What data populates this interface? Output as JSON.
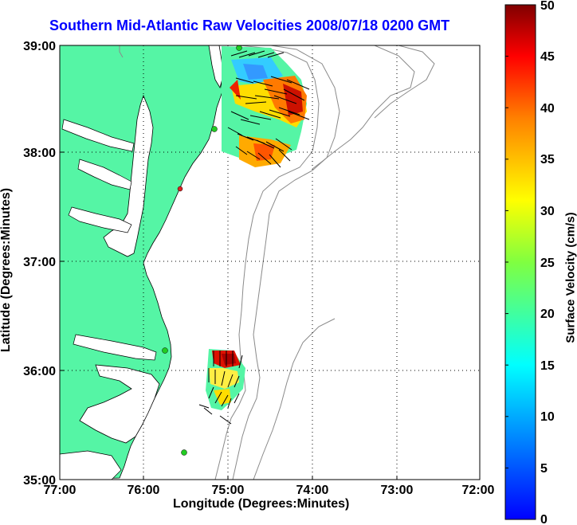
{
  "map": {
    "title": "Southern Mid-Atlantic Raw Velocities 2008/07/18 0200 GMT",
    "xlabel": "Longitude (Degrees:Minutes)",
    "ylabel": "Latitude (Degrees:Minutes)",
    "x_ticks": [
      "77:00",
      "76:00",
      "75:00",
      "74:00",
      "73:00",
      "72:00"
    ],
    "y_ticks": [
      "39:00",
      "38:00",
      "37:00",
      "36:00",
      "35:00"
    ],
    "xlim": [
      -77,
      -72
    ],
    "ylim": [
      35,
      39
    ],
    "land_color": "#55f5a5",
    "water_color": "#ffffff",
    "bathymetry_color": "#8a8a8a",
    "grid": "dotted"
  },
  "colorbar": {
    "label": "Surface Velocity (cm/s)",
    "ticks": [
      "0",
      "5",
      "10",
      "15",
      "20",
      "25",
      "30",
      "35",
      "40",
      "45",
      "50"
    ],
    "range": [
      0,
      50
    ],
    "colormap": "jet"
  },
  "stations": [
    {
      "lon": -74.85,
      "lat": 38.98,
      "color": "#22cc22"
    },
    {
      "lon": -75.15,
      "lat": 38.22,
      "color": "#22cc22"
    },
    {
      "lon": -75.55,
      "lat": 37.68,
      "color": "#dd2222"
    },
    {
      "lon": -75.75,
      "lat": 36.18,
      "color": "#22cc22"
    },
    {
      "lon": -75.5,
      "lat": 35.25,
      "color": "#22cc22"
    }
  ]
}
